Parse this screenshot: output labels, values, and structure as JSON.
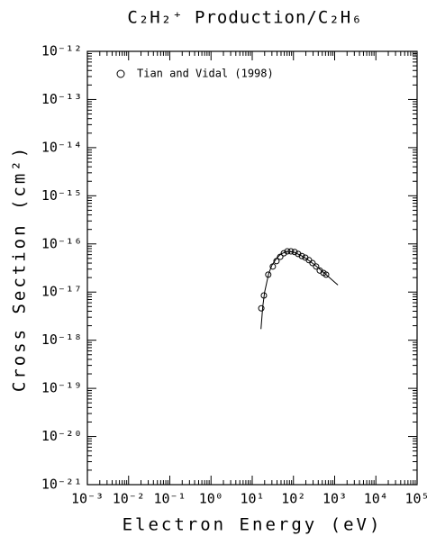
{
  "chart_data": {
    "type": "scatter",
    "title": "C₂H₂⁺ Production/C₂H₆",
    "x_label": "Electron Energy (eV)",
    "y_label": "Cross Section (cm²)",
    "x_log": true,
    "y_log": true,
    "legend": "upper left",
    "xlim": [
      0.001,
      100000
    ],
    "ylim": [
      1e-21,
      1e-12
    ],
    "xticks": [
      {
        "value": 0.001,
        "label": "10⁻³"
      },
      {
        "value": 0.01,
        "label": "10⁻²"
      },
      {
        "value": 0.1,
        "label": "10⁻¹"
      },
      {
        "value": 1,
        "label": "10⁰"
      },
      {
        "value": 10,
        "label": "10¹"
      },
      {
        "value": 100,
        "label": "10²"
      },
      {
        "value": 1000,
        "label": "10³"
      },
      {
        "value": 10000,
        "label": "10⁴"
      },
      {
        "value": 100000,
        "label": "10⁵"
      }
    ],
    "yticks": [
      {
        "value": 1e-21,
        "label": "10⁻²¹"
      },
      {
        "value": 1e-20,
        "label": "10⁻²⁰"
      },
      {
        "value": 1e-19,
        "label": "10⁻¹⁹"
      },
      {
        "value": 1e-18,
        "label": "10⁻¹⁸"
      },
      {
        "value": 1e-17,
        "label": "10⁻¹⁷"
      },
      {
        "value": 1e-16,
        "label": "10⁻¹⁶"
      },
      {
        "value": 1e-15,
        "label": "10⁻¹⁵"
      },
      {
        "value": 1e-14,
        "label": "10⁻¹⁴"
      },
      {
        "value": 1e-13,
        "label": "10⁻¹³"
      },
      {
        "value": 1e-12,
        "label": "10⁻¹²"
      }
    ],
    "series": [
      {
        "name": "Tian and Vidal (1998)",
        "type": "scatter",
        "marker": "circle",
        "color": "#000000",
        "x": [
          16.6,
          19.2,
          24.5,
          31.6,
          38.8,
          47.8,
          58.5,
          71,
          87,
          107,
          130,
          160,
          194,
          238,
          290,
          355,
          435,
          535,
          620
        ],
        "values": [
          4.6e-18,
          8.5e-18,
          2.3e-17,
          3.4e-17,
          4.4e-17,
          5.4e-17,
          6.4e-17,
          7e-17,
          7e-17,
          6.8e-17,
          6.2e-17,
          5.6e-17,
          5.2e-17,
          4.6e-17,
          4e-17,
          3.4e-17,
          2.8e-17,
          2.5e-17,
          2.3e-17
        ]
      },
      {
        "type": "line",
        "color": "#000000",
        "x": [
          16.3,
          18,
          20,
          25,
          30,
          40,
          50,
          70,
          100,
          150,
          200,
          300,
          500,
          700,
          1000,
          1200
        ],
        "values": [
          1.7e-18,
          5e-18,
          1e-17,
          2.4e-17,
          3.6e-17,
          5.2e-17,
          6.2e-17,
          7e-17,
          6.8e-17,
          5.8e-17,
          5e-17,
          3.9e-17,
          2.7e-17,
          2.1e-17,
          1.6e-17,
          1.4e-17
        ]
      }
    ]
  }
}
